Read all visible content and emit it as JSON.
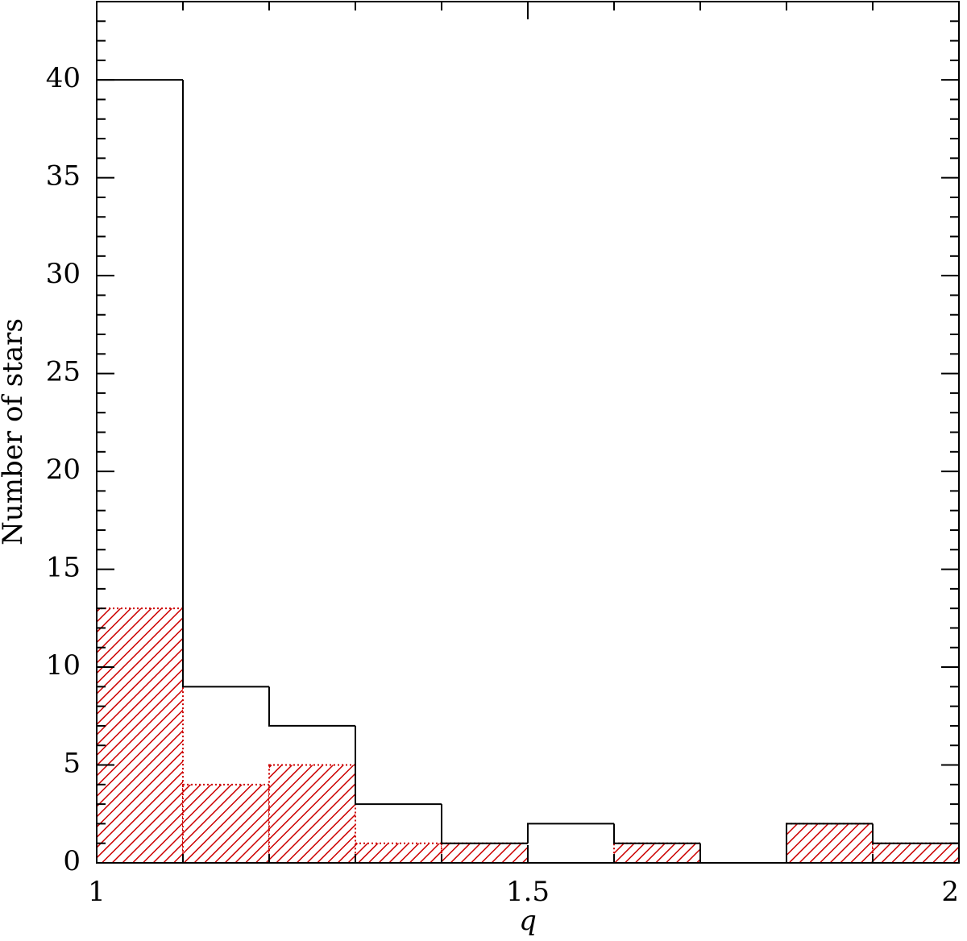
{
  "chart_data": {
    "type": "histogram",
    "x_label": "q",
    "y_label": "Number of stars",
    "bins": [
      1.0,
      1.1,
      1.2,
      1.3,
      1.4,
      1.5,
      1.6,
      1.7,
      1.8,
      1.9,
      2.0
    ],
    "series": [
      {
        "color": "#000000",
        "fill": "none",
        "values": [
          40,
          9,
          7,
          3,
          1,
          2,
          1,
          0,
          2,
          1
        ]
      },
      {
        "color": "#cc0000",
        "fill": "hatch",
        "values": [
          13,
          4,
          5,
          1,
          1,
          0,
          1,
          0,
          2,
          1
        ]
      }
    ],
    "xlim": [
      1,
      2
    ],
    "xticks": [
      1,
      1.5,
      2
    ],
    "xminorticks": [
      1.1,
      1.2,
      1.3,
      1.4,
      1.6,
      1.7,
      1.8,
      1.9
    ],
    "ylim": [
      0,
      44
    ],
    "yticks": [
      0,
      5,
      10,
      15,
      20,
      25,
      30,
      35,
      40
    ],
    "yminorticks": [
      1,
      2,
      3,
      4,
      6,
      7,
      8,
      9,
      11,
      12,
      13,
      14,
      16,
      17,
      18,
      19,
      21,
      22,
      23,
      24,
      26,
      27,
      28,
      29,
      31,
      32,
      33,
      34,
      36,
      37,
      38,
      39,
      41,
      42,
      43
    ],
    "grid": false
  }
}
